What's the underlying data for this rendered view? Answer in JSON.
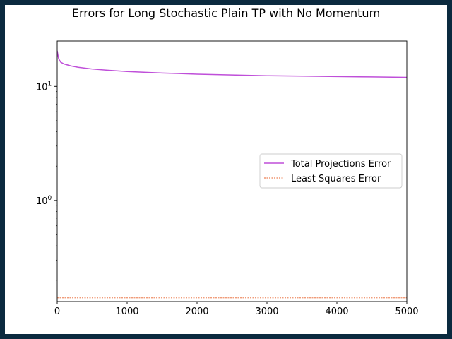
{
  "chart_data": {
    "type": "line",
    "title": "Errors for Long Stochastic Plain TP with No Momentum",
    "xlabel": "",
    "ylabel": "",
    "xlim": [
      0,
      5000
    ],
    "ylim": [
      0.13,
      25
    ],
    "yscale": "log",
    "xticks": [
      {
        "value": 0,
        "label": "0"
      },
      {
        "value": 1000,
        "label": "1000"
      },
      {
        "value": 2000,
        "label": "2000"
      },
      {
        "value": 3000,
        "label": "3000"
      },
      {
        "value": 4000,
        "label": "4000"
      },
      {
        "value": 5000,
        "label": "5000"
      }
    ],
    "yticks": [
      {
        "value": 1,
        "label": "10^0",
        "base": "10",
        "exp": "0"
      },
      {
        "value": 10,
        "label": "10^1",
        "base": "10",
        "exp": "1"
      }
    ],
    "grid": false,
    "legend_position": "center-right",
    "series": [
      {
        "name": "Total Projections Error",
        "color": "#bf4fd9",
        "style": "solid",
        "x": [
          0,
          20,
          50,
          100,
          200,
          300,
          500,
          700,
          1000,
          1500,
          2000,
          2500,
          3000,
          3500,
          4000,
          4500,
          5000
        ],
        "y": [
          20.5,
          17.5,
          16.3,
          15.7,
          15.1,
          14.7,
          14.2,
          13.9,
          13.5,
          13.1,
          12.8,
          12.6,
          12.4,
          12.3,
          12.2,
          12.1,
          12.0
        ]
      },
      {
        "name": "Least Squares Error",
        "color": "#e8622a",
        "style": "dotted",
        "x": [
          0,
          5000
        ],
        "y": [
          0.14,
          0.14
        ]
      }
    ]
  }
}
